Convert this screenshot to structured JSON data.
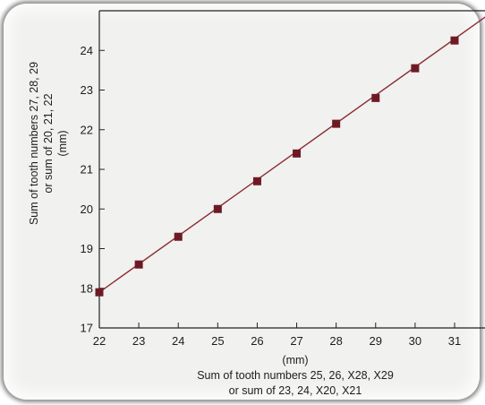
{
  "chart_data": {
    "type": "line",
    "title": "",
    "xlabel": [
      "(mm)",
      "Sum of tooth numbers 25, 26, X28, X29",
      "or sum of 23, 24, X20, X21"
    ],
    "ylabel": [
      "Sum of tooth numbers 27, 28, 29",
      "or sum of 20, 21, 22",
      "(mm)"
    ],
    "xlim": [
      22,
      32
    ],
    "ylim": [
      17,
      25
    ],
    "x_ticks": [
      "22",
      "23",
      "24",
      "25",
      "26",
      "27",
      "28",
      "29",
      "30",
      "31"
    ],
    "y_ticks": [
      "17",
      "18",
      "19",
      "20",
      "21",
      "22",
      "23",
      "24"
    ],
    "grid": false,
    "series": [
      {
        "color": "#6e1a24",
        "x": [
          22,
          23,
          24,
          25,
          26,
          27,
          28,
          29,
          30,
          31
        ],
        "y": [
          17.9,
          18.6,
          19.3,
          20.0,
          20.7,
          21.4,
          22.15,
          22.8,
          23.55,
          24.25
        ]
      }
    ],
    "fit_line": {
      "color": "#8a2a33",
      "x": [
        22,
        32
      ],
      "y": [
        17.9,
        25.0
      ]
    }
  }
}
